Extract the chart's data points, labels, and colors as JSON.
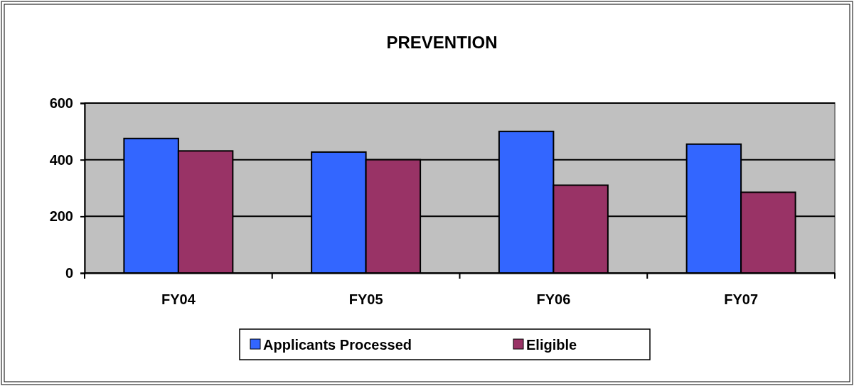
{
  "chart_data": {
    "type": "bar",
    "title": "PREVENTION",
    "categories": [
      "FY04",
      "FY05",
      "FY06",
      "FY07"
    ],
    "series": [
      {
        "name": "Applicants Processed",
        "color": "#3366ff",
        "values": [
          475,
          427,
          500,
          455
        ]
      },
      {
        "name": "Eligible",
        "color": "#993366",
        "values": [
          431,
          400,
          310,
          285
        ]
      }
    ],
    "ylim": [
      0,
      600
    ],
    "yticks": [
      0,
      200,
      400,
      600
    ],
    "grid": "y",
    "legend": "bottom"
  }
}
